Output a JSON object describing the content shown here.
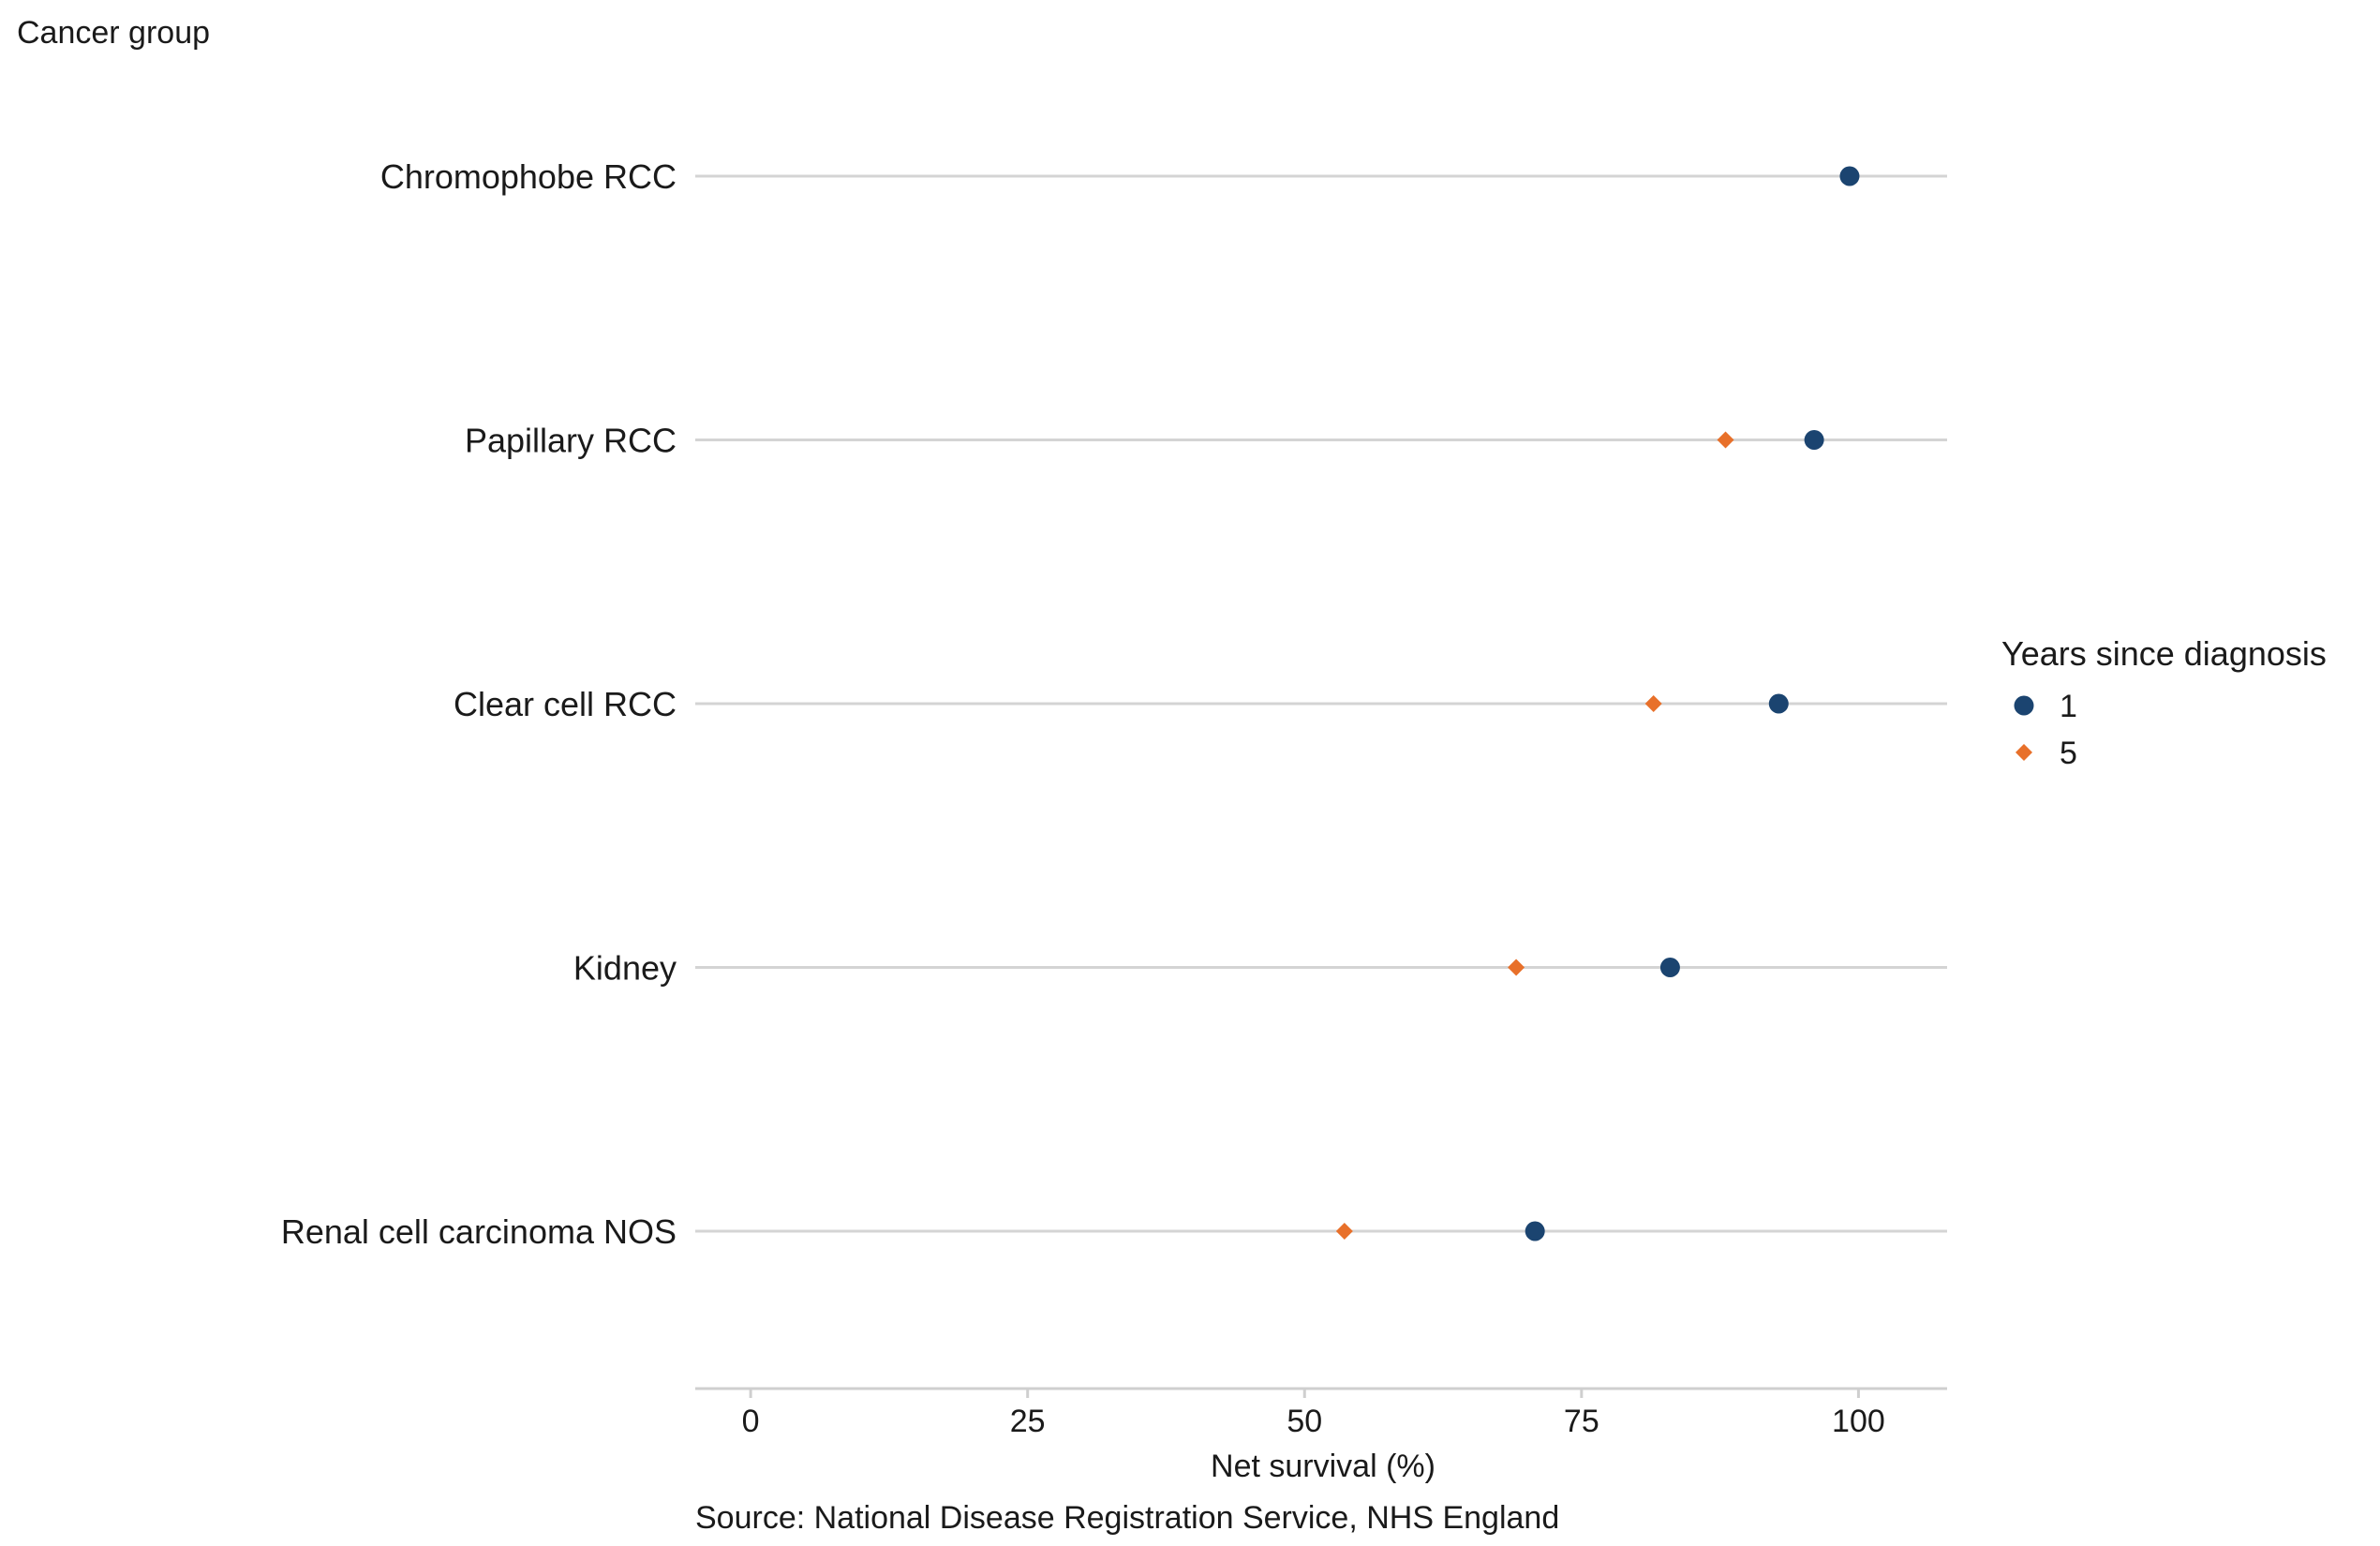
{
  "chart_data": {
    "type": "scatter",
    "yaxis_title": "Cancer group",
    "xlabel": "Net survival (%)",
    "source": "Source: National Disease Registration Service, NHS England",
    "xlim": [
      -5,
      108
    ],
    "xticks": [
      0,
      25,
      50,
      75,
      100
    ],
    "grid": "horizontal",
    "legend": {
      "title": "Years since diagnosis",
      "placement": "right"
    },
    "categories": [
      "Chromophobe RCC",
      "Papillary RCC",
      "Clear cell RCC",
      "Kidney",
      "Renal cell carcinoma NOS"
    ],
    "series": [
      {
        "name": "1",
        "marker": "circle",
        "color": "#1b4470",
        "values": [
          99.2,
          96,
          92.8,
          83,
          70.8
        ]
      },
      {
        "name": "5",
        "marker": "diamond",
        "color": "#e8702a",
        "values": [
          null,
          88,
          81.5,
          69.1,
          53.6
        ]
      }
    ]
  }
}
